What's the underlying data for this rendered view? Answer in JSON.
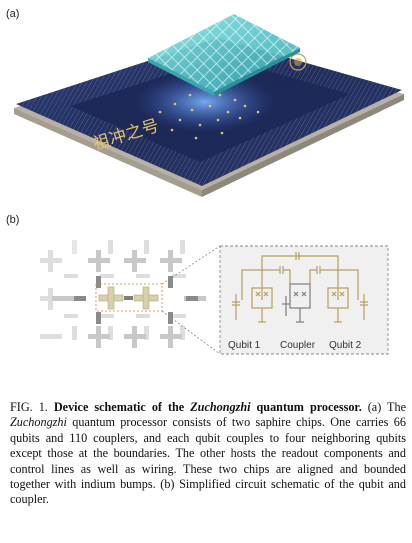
{
  "panel_a_label": "(a)",
  "panel_b_label": "(b)",
  "chip_text": "祖冲之号",
  "circuit_labels": {
    "qubit1": "Qubit 1",
    "coupler": "Coupler",
    "qubit2": "Qubit 2"
  },
  "caption": {
    "fig_number": "FIG. 1.",
    "title_pre": "Device schematic of the ",
    "title_name": "Zuchongzhi",
    "title_post": " quantum processor.",
    "text1_pre": " (a) The ",
    "text1_name": "Zuchongzhi",
    "text1_post": " quantum processor consists of two saphire chips. One carries 66 qubits and 110 couplers, and each qubit couples to four neighboring qubits except those at the boundaries. The other hosts the readout components and control lines as well as wiring. These two chips are aligned and bounded together with indium bumps. (b) Simplified circuit schematic of the qubit and coupler."
  },
  "colors": {
    "chip_navy": "#1f2e63",
    "chip_gold": "#c9a24a",
    "glass": "#5fc6c9",
    "circuit_gold": "#b79e5e",
    "circuit_gray": "#7d7d7d"
  }
}
